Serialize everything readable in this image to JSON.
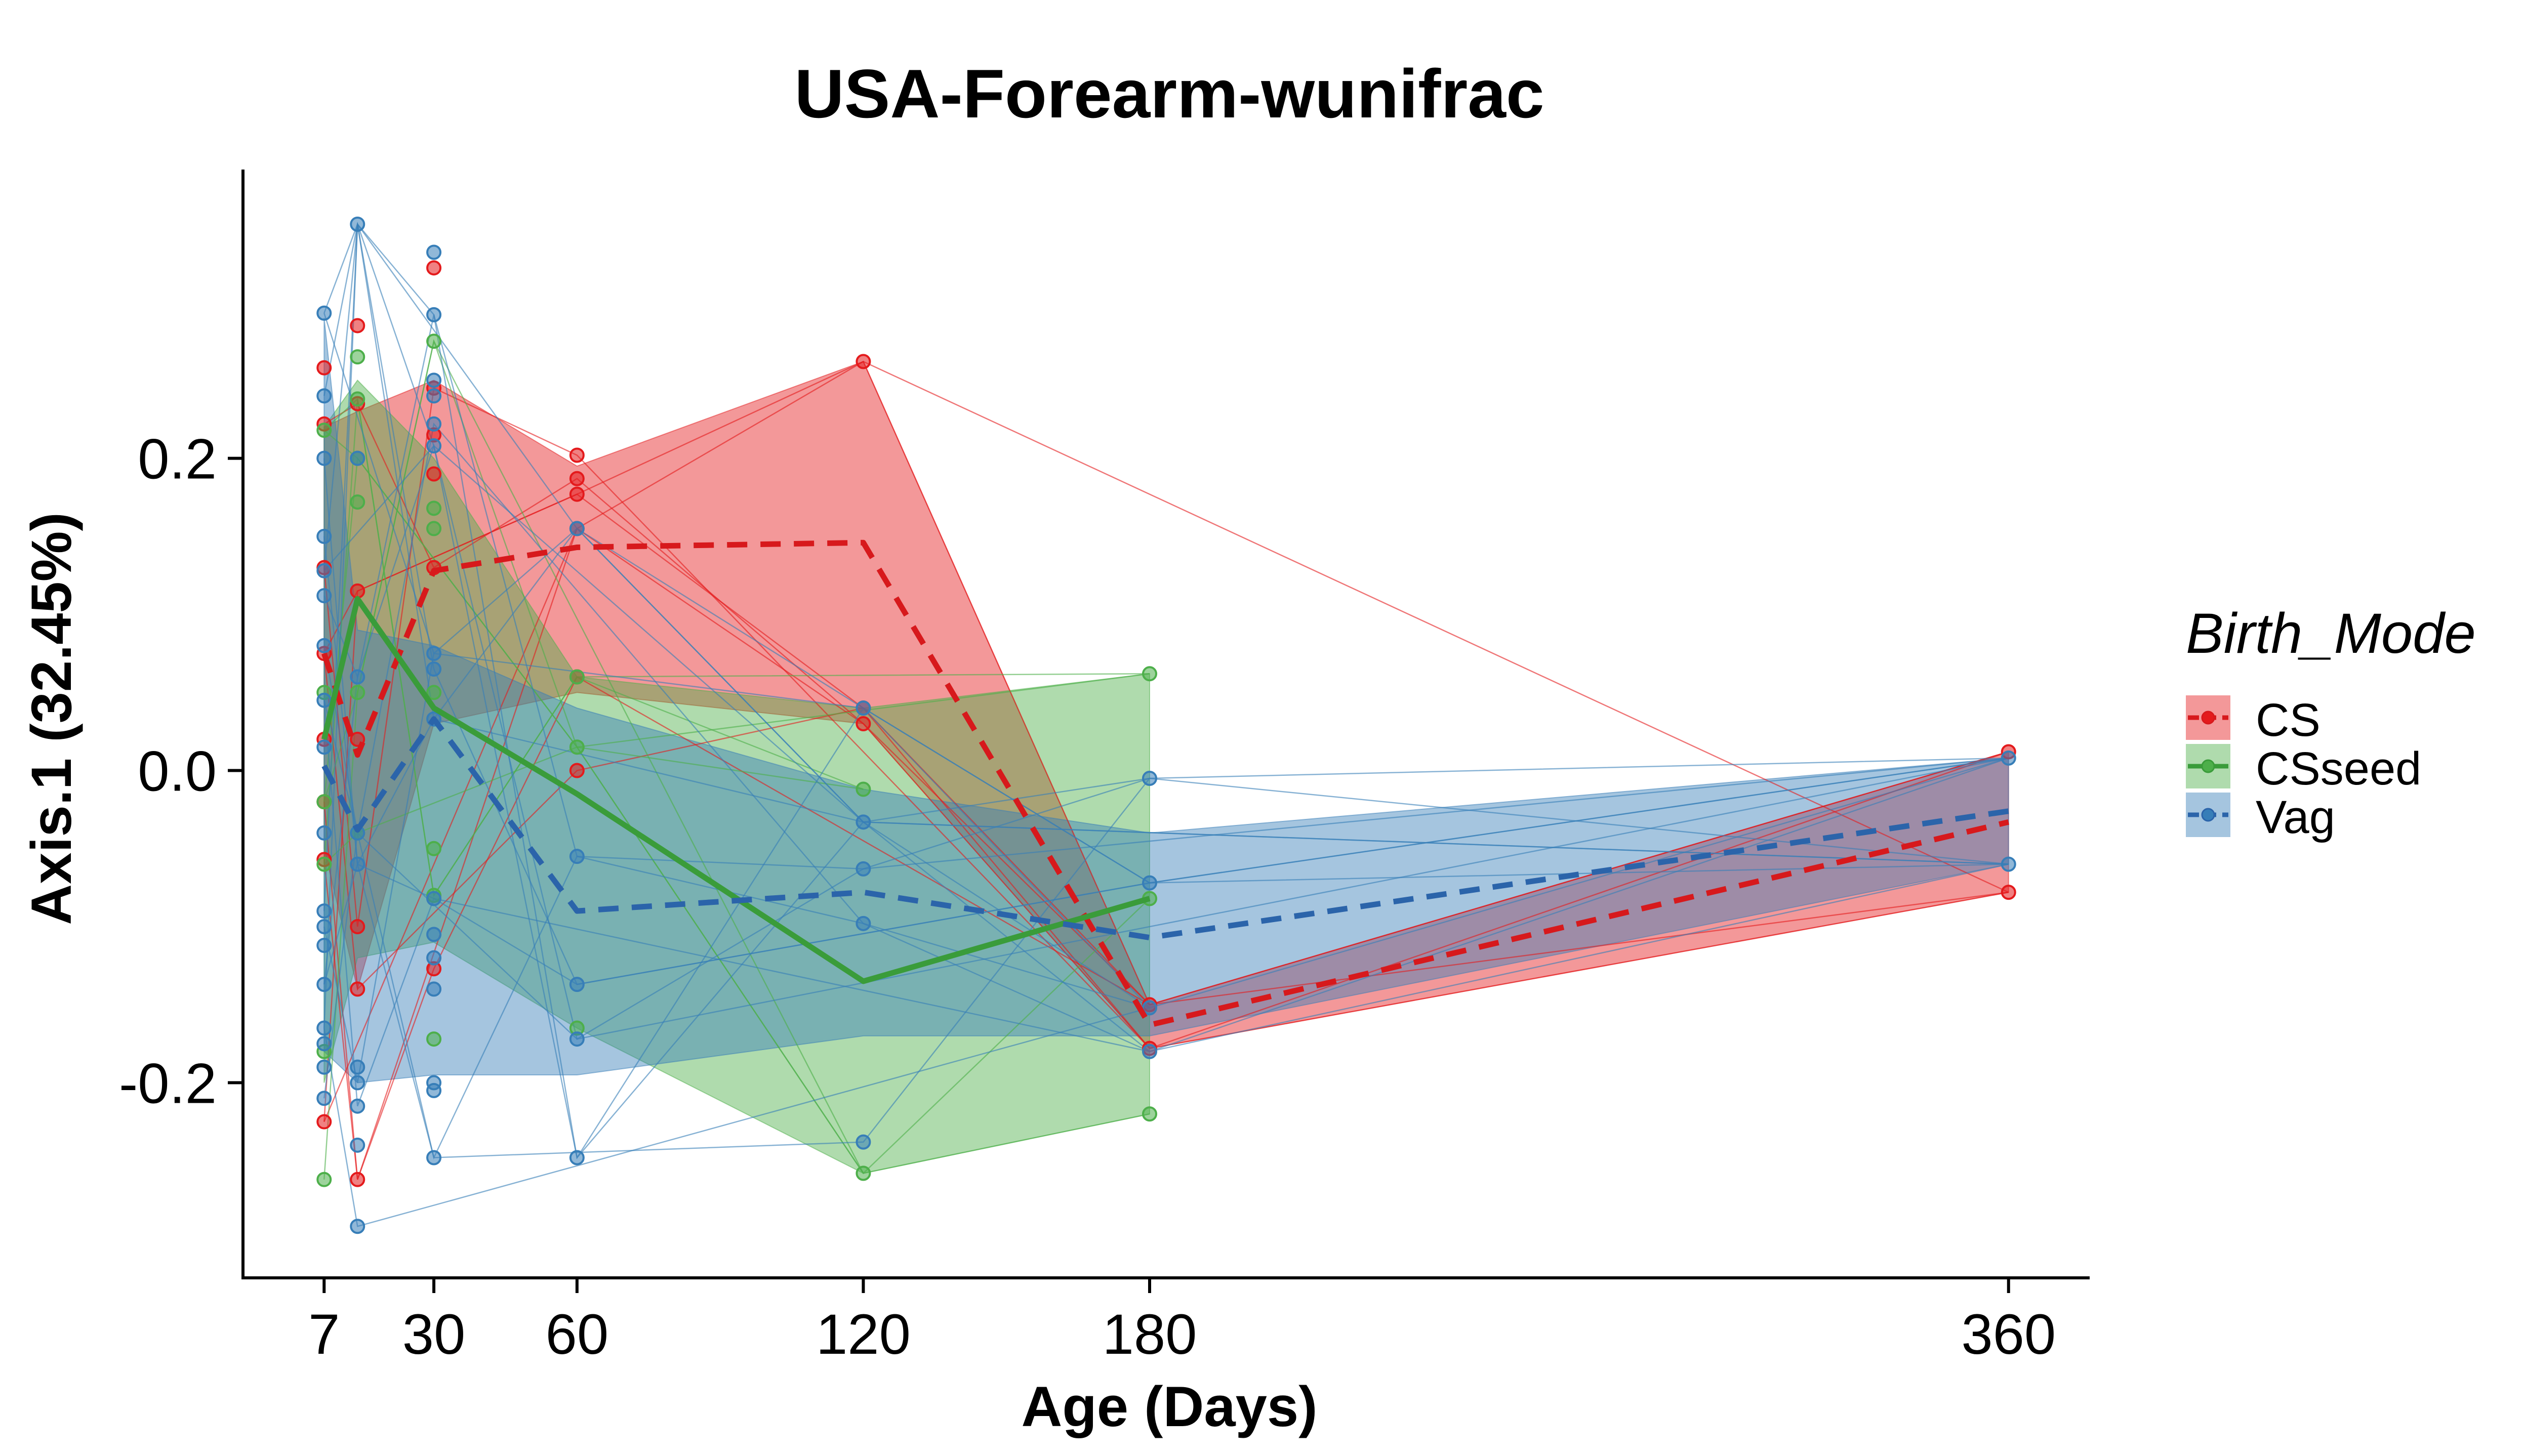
{
  "chart_data": {
    "type": "line",
    "title": "USA-Forearm-wunifrac",
    "xlabel": "Age (Days)",
    "ylabel": "Axis.1 (32.45%)",
    "x_ticks": [
      7,
      30,
      60,
      120,
      180,
      360
    ],
    "y_ticks": [
      -0.2,
      0.0,
      0.2
    ],
    "y_tick_labels": [
      "-0.2",
      "0.0",
      "0.2"
    ],
    "xlim": [
      -10,
      377
    ],
    "ylim": [
      -0.325,
      0.385
    ],
    "grid": false,
    "legend": {
      "title": "Birth_Mode",
      "position": "right",
      "entries": [
        "CS",
        "CSseed",
        "Vag"
      ]
    },
    "series": [
      {
        "name": "CS",
        "color": "#E41A1C",
        "line_color": "#D7191C",
        "line_style": "dashed",
        "mean": {
          "x": [
            7,
            14,
            30,
            60,
            120,
            180,
            360
          ],
          "y": [
            0.075,
            0.01,
            0.128,
            0.143,
            0.146,
            -0.163,
            -0.033
          ]
        },
        "ribbon": {
          "x": [
            7,
            14,
            30,
            60,
            120,
            180,
            360
          ],
          "upper": [
            0.22,
            0.23,
            0.25,
            0.195,
            0.262,
            -0.15,
            0.012
          ],
          "lower": [
            -0.05,
            -0.14,
            0.03,
            0.05,
            0.03,
            -0.178,
            -0.078
          ]
        },
        "points": [
          [
            7,
            0.258
          ],
          [
            7,
            0.222
          ],
          [
            7,
            0.13
          ],
          [
            7,
            0.075
          ],
          [
            7,
            0.02
          ],
          [
            7,
            -0.02
          ],
          [
            7,
            -0.057
          ],
          [
            7,
            -0.225
          ],
          [
            14,
            0.285
          ],
          [
            14,
            0.235
          ],
          [
            14,
            0.115
          ],
          [
            14,
            0.02
          ],
          [
            14,
            -0.1
          ],
          [
            14,
            -0.14
          ],
          [
            14,
            -0.262
          ],
          [
            30,
            0.322
          ],
          [
            30,
            0.245
          ],
          [
            30,
            0.215
          ],
          [
            30,
            0.19
          ],
          [
            30,
            0.13
          ],
          [
            30,
            -0.127
          ],
          [
            60,
            0.202
          ],
          [
            60,
            0.187
          ],
          [
            60,
            0.177
          ],
          [
            60,
            0.155
          ],
          [
            60,
            0.06
          ],
          [
            60,
            0.0
          ],
          [
            120,
            0.262
          ],
          [
            120,
            0.04
          ],
          [
            120,
            0.03
          ],
          [
            180,
            -0.15
          ],
          [
            180,
            -0.178
          ],
          [
            360,
            0.012
          ],
          [
            360,
            -0.078
          ]
        ]
      },
      {
        "name": "CSseed",
        "color": "#4DAF4A",
        "line_color": "#3A9C3A",
        "line_style": "solid",
        "mean": {
          "x": [
            7,
            14,
            30,
            60,
            120,
            180
          ],
          "y": [
            0.02,
            0.11,
            0.04,
            -0.015,
            -0.135,
            -0.082
          ]
        },
        "ribbon": {
          "x": [
            7,
            14,
            30,
            60,
            120,
            180
          ],
          "upper": [
            0.22,
            0.25,
            0.2,
            0.06,
            0.04,
            0.062
          ],
          "lower": [
            -0.2,
            -0.12,
            -0.11,
            -0.165,
            -0.258,
            -0.22
          ]
        },
        "points": [
          [
            7,
            0.218
          ],
          [
            7,
            0.05
          ],
          [
            7,
            -0.02
          ],
          [
            7,
            -0.06
          ],
          [
            7,
            -0.18
          ],
          [
            7,
            -0.262
          ],
          [
            14,
            0.265
          ],
          [
            14,
            0.238
          ],
          [
            14,
            0.2
          ],
          [
            14,
            0.172
          ],
          [
            14,
            0.05
          ],
          [
            14,
            -0.04
          ],
          [
            30,
            0.275
          ],
          [
            30,
            0.168
          ],
          [
            30,
            0.155
          ],
          [
            30,
            0.05
          ],
          [
            30,
            -0.05
          ],
          [
            30,
            -0.08
          ],
          [
            30,
            -0.172
          ],
          [
            60,
            0.06
          ],
          [
            60,
            0.015
          ],
          [
            60,
            -0.165
          ],
          [
            120,
            -0.012
          ],
          [
            120,
            -0.258
          ],
          [
            180,
            0.062
          ],
          [
            180,
            -0.082
          ],
          [
            180,
            -0.22
          ]
        ]
      },
      {
        "name": "Vag",
        "color": "#377EB8",
        "line_color": "#2B64AA",
        "line_style": "dashed",
        "mean": {
          "x": [
            7,
            14,
            30,
            60,
            120,
            180,
            360
          ],
          "y": [
            0.003,
            -0.038,
            0.033,
            -0.09,
            -0.078,
            -0.107,
            -0.026
          ]
        },
        "ribbon": {
          "x": [
            7,
            14,
            30,
            60,
            120,
            180,
            360
          ],
          "upper": [
            0.29,
            0.09,
            0.08,
            0.04,
            -0.012,
            -0.04,
            0.008
          ],
          "lower": [
            -0.18,
            -0.2,
            -0.195,
            -0.195,
            -0.17,
            -0.17,
            -0.06
          ]
        },
        "points": [
          [
            7,
            0.293
          ],
          [
            7,
            0.24
          ],
          [
            7,
            0.2
          ],
          [
            7,
            0.15
          ],
          [
            7,
            0.128
          ],
          [
            7,
            0.112
          ],
          [
            7,
            0.08
          ],
          [
            7,
            0.045
          ],
          [
            7,
            0.015
          ],
          [
            7,
            -0.04
          ],
          [
            7,
            -0.09
          ],
          [
            7,
            -0.1
          ],
          [
            7,
            -0.112
          ],
          [
            7,
            -0.137
          ],
          [
            7,
            -0.165
          ],
          [
            7,
            -0.175
          ],
          [
            7,
            -0.19
          ],
          [
            7,
            -0.21
          ],
          [
            14,
            0.35
          ],
          [
            14,
            0.2
          ],
          [
            14,
            0.06
          ],
          [
            14,
            -0.04
          ],
          [
            14,
            -0.06
          ],
          [
            14,
            -0.19
          ],
          [
            14,
            -0.2
          ],
          [
            14,
            -0.215
          ],
          [
            14,
            -0.24
          ],
          [
            14,
            -0.292
          ],
          [
            30,
            0.332
          ],
          [
            30,
            0.292
          ],
          [
            30,
            0.25
          ],
          [
            30,
            0.24
          ],
          [
            30,
            0.222
          ],
          [
            30,
            0.208
          ],
          [
            30,
            0.075
          ],
          [
            30,
            0.065
          ],
          [
            30,
            0.033
          ],
          [
            30,
            -0.082
          ],
          [
            30,
            -0.105
          ],
          [
            30,
            -0.12
          ],
          [
            30,
            -0.14
          ],
          [
            30,
            -0.2
          ],
          [
            30,
            -0.205
          ],
          [
            30,
            -0.248
          ],
          [
            60,
            0.155
          ],
          [
            60,
            -0.055
          ],
          [
            60,
            -0.137
          ],
          [
            60,
            -0.172
          ],
          [
            60,
            -0.248
          ],
          [
            120,
            0.04
          ],
          [
            120,
            -0.033
          ],
          [
            120,
            -0.063
          ],
          [
            120,
            -0.098
          ],
          [
            120,
            -0.238
          ],
          [
            180,
            -0.005
          ],
          [
            180,
            -0.072
          ],
          [
            180,
            -0.152
          ],
          [
            180,
            -0.18
          ],
          [
            360,
            0.008
          ],
          [
            360,
            -0.06
          ]
        ]
      }
    ]
  }
}
